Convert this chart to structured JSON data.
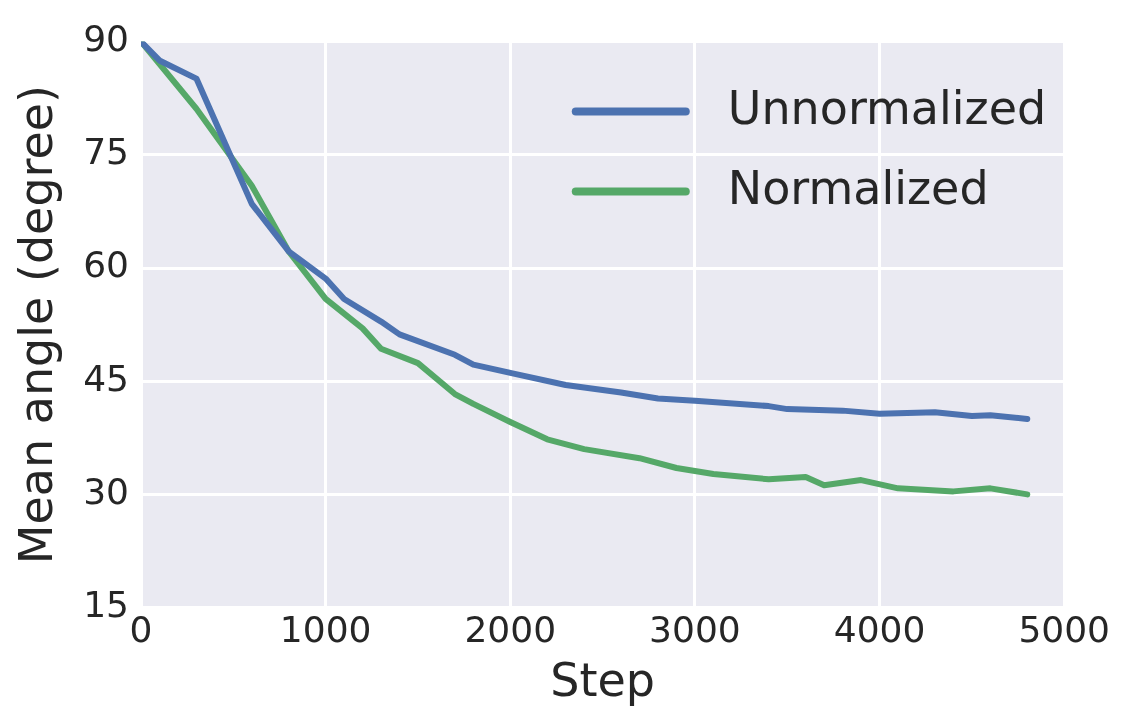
{
  "chart_data": {
    "type": "line",
    "xlabel": "Step",
    "ylabel": "Mean angle (degree)",
    "xlim": [
      0,
      5000
    ],
    "ylim": [
      15,
      90
    ],
    "xticks": [
      0,
      1000,
      2000,
      3000,
      4000,
      5000
    ],
    "yticks": [
      15,
      30,
      45,
      60,
      75,
      90
    ],
    "grid": true,
    "legend": "top right",
    "line_style": "solid",
    "marker": "none",
    "series": [
      {
        "name": "Unnormalized",
        "color": "#4c72b0",
        "x": [
          0,
          100,
          300,
          600,
          800,
          1000,
          1100,
          1300,
          1400,
          1700,
          1800,
          2000,
          2300,
          2600,
          2800,
          3000,
          3400,
          3500,
          3800,
          4000,
          4300,
          4500,
          4600,
          4800
        ],
        "values": [
          90,
          87.5,
          85.1,
          68.5,
          62.2,
          58.6,
          55.9,
          52.9,
          51.2,
          48.5,
          47.2,
          46.1,
          44.5,
          43.5,
          42.7,
          42.4,
          41.7,
          41.3,
          41.1,
          40.7,
          40.9,
          40.4,
          40.5,
          40.0
        ]
      },
      {
        "name": "Normalized",
        "color": "#55a868",
        "x": [
          0,
          300,
          600,
          800,
          1000,
          1200,
          1300,
          1500,
          1700,
          1800,
          2000,
          2200,
          2400,
          2700,
          2900,
          3100,
          3400,
          3600,
          3700,
          3900,
          4100,
          4400,
          4600,
          4800
        ],
        "values": [
          90,
          81.1,
          70.9,
          62.2,
          55.9,
          52.0,
          49.3,
          47.4,
          43.3,
          42.0,
          39.6,
          37.3,
          36.0,
          34.8,
          33.5,
          32.7,
          32.0,
          32.3,
          31.2,
          31.9,
          30.8,
          30.4,
          30.8,
          30.0
        ]
      }
    ]
  }
}
